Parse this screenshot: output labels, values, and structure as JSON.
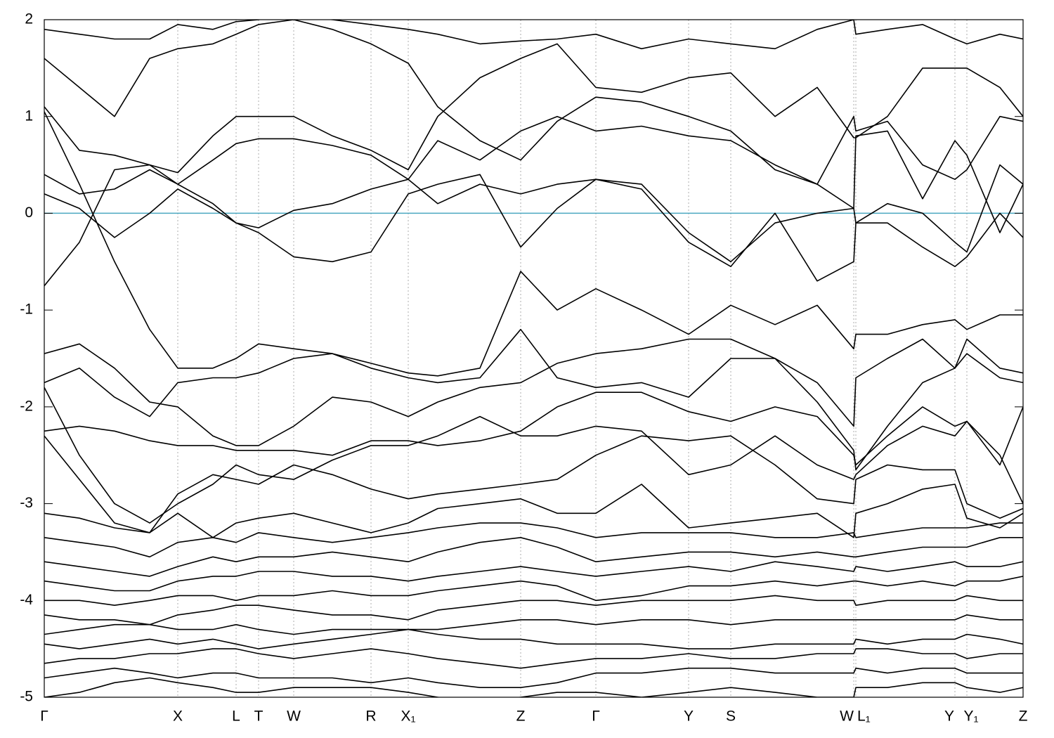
{
  "chart_data": {
    "type": "line",
    "x": [
      0,
      50,
      100,
      150,
      190,
      240,
      273,
      305,
      355,
      410,
      465,
      518,
      560,
      620,
      678,
      730,
      785,
      850,
      917,
      977,
      1040,
      1100,
      1152,
      1155,
      1200,
      1250,
      1296,
      1313,
      1360,
      1393
    ],
    "xlim": [
      0,
      1393
    ],
    "xticks": [
      {
        "value": 0,
        "label": "Γ"
      },
      {
        "value": 190,
        "label": "X"
      },
      {
        "value": 273,
        "label": "L"
      },
      {
        "value": 305,
        "label": "T"
      },
      {
        "value": 355,
        "label": "W"
      },
      {
        "value": 465,
        "label": "R"
      },
      {
        "value": 518,
        "label": "X₁"
      },
      {
        "value": 678,
        "label": "Z"
      },
      {
        "value": 785,
        "label": "Γ"
      },
      {
        "value": 917,
        "label": "Y"
      },
      {
        "value": 977,
        "label": "S"
      },
      {
        "value": 1152,
        "label": "W"
      },
      {
        "value": 1155,
        "label": "L₁"
      },
      {
        "value": 1296,
        "label": "Y"
      },
      {
        "value": 1313,
        "label": "Y₁"
      },
      {
        "value": 1393,
        "label": "Z"
      }
    ],
    "ylim": [
      -5,
      2
    ],
    "yticks": [
      -5,
      -4,
      -3,
      -2,
      -1,
      0,
      1,
      2
    ],
    "grid": true,
    "color": "#000000",
    "reference_line": 0,
    "reference_color": "#4aa8c0",
    "series": [
      {
        "values": [
          1.05,
          0.3,
          -0.5,
          -1.2,
          -1.6,
          -1.6,
          -1.5,
          -1.35,
          -1.4,
          -1.45,
          -1.55,
          -1.65,
          -1.68,
          -1.6,
          -0.6,
          -1.0,
          -0.78,
          -1.0,
          -1.25,
          -0.95,
          -1.15,
          -0.95,
          -1.4,
          -1.25,
          -1.25,
          -1.15,
          -1.1,
          -1.2,
          -1.05,
          -1.05
        ]
      },
      {
        "values": [
          0.2,
          0.05,
          -0.25,
          0.0,
          0.25,
          0.05,
          -0.1,
          -0.2,
          -0.45,
          -0.5,
          -0.4,
          0.2,
          0.3,
          0.4,
          -0.35,
          0.05,
          0.35,
          0.25,
          -0.3,
          -0.55,
          0.0,
          -0.7,
          -0.5,
          -0.1,
          -0.1,
          -0.35,
          -0.55,
          -0.45,
          0.0,
          -0.25
        ]
      },
      {
        "values": [
          0.4,
          0.2,
          0.25,
          0.45,
          0.3,
          0.1,
          -0.1,
          -0.15,
          0.03,
          0.1,
          0.25,
          0.35,
          0.1,
          0.3,
          0.2,
          0.3,
          0.35,
          0.3,
          -0.2,
          -0.5,
          -0.1,
          0.0,
          0.05,
          -0.1,
          0.1,
          0.0,
          -0.3,
          -0.4,
          0.5,
          0.3
        ]
      },
      {
        "values": [
          -0.75,
          -0.3,
          0.45,
          0.5,
          0.3,
          0.55,
          0.72,
          0.77,
          0.77,
          0.7,
          0.6,
          0.35,
          0.75,
          0.55,
          0.85,
          1.0,
          0.85,
          0.9,
          0.8,
          0.75,
          0.5,
          0.3,
          0.05,
          0.8,
          0.85,
          0.15,
          0.75,
          0.6,
          -0.2,
          0.3
        ]
      },
      {
        "values": [
          1.1,
          0.65,
          0.6,
          0.5,
          0.42,
          0.8,
          1.0,
          1.0,
          1.0,
          0.8,
          0.65,
          0.45,
          1.0,
          1.4,
          1.6,
          1.75,
          1.3,
          1.25,
          1.4,
          1.45,
          1.0,
          1.3,
          0.78,
          0.78,
          1.0,
          1.5,
          1.5,
          1.5,
          1.3,
          1.0
        ]
      },
      {
        "values": [
          1.6,
          1.3,
          1.0,
          1.6,
          1.7,
          1.75,
          1.85,
          1.95,
          2.0,
          1.9,
          1.75,
          1.55,
          1.1,
          0.75,
          0.55,
          0.95,
          1.2,
          1.15,
          1.0,
          0.85,
          0.45,
          0.3,
          1.0,
          0.85,
          0.95,
          0.5,
          0.35,
          0.45,
          1.0,
          0.95
        ]
      },
      {
        "values": [
          1.9,
          1.85,
          1.8,
          1.8,
          1.95,
          1.9,
          1.98,
          2.0,
          2.05,
          2.0,
          1.95,
          1.9,
          1.85,
          1.75,
          1.78,
          1.8,
          1.85,
          1.7,
          1.8,
          1.75,
          1.7,
          1.9,
          2.0,
          1.85,
          1.9,
          1.95,
          1.8,
          1.75,
          1.85,
          1.8
        ]
      },
      {
        "values": [
          -1.75,
          -1.6,
          -1.9,
          -2.1,
          -1.75,
          -1.7,
          -1.7,
          -1.65,
          -1.5,
          -1.45,
          -1.6,
          -1.7,
          -1.75,
          -1.7,
          -1.2,
          -1.7,
          -1.8,
          -1.75,
          -1.9,
          -1.5,
          -1.5,
          -1.75,
          -2.2,
          -1.7,
          -1.5,
          -1.3,
          -1.6,
          -1.3,
          -1.6,
          -1.65
        ]
      },
      {
        "values": [
          -1.45,
          -1.35,
          -1.6,
          -1.95,
          -2.0,
          -2.3,
          -2.4,
          -2.4,
          -2.2,
          -1.9,
          -1.95,
          -2.1,
          -1.95,
          -1.8,
          -1.75,
          -1.55,
          -1.45,
          -1.4,
          -1.3,
          -1.3,
          -1.5,
          -1.95,
          -2.45,
          -2.65,
          -2.2,
          -1.75,
          -1.6,
          -1.45,
          -1.7,
          -1.75
        ]
      },
      {
        "values": [
          -2.25,
          -2.2,
          -2.25,
          -2.35,
          -2.4,
          -2.4,
          -2.45,
          -2.45,
          -2.45,
          -2.5,
          -2.35,
          -2.35,
          -2.4,
          -2.35,
          -2.25,
          -2.0,
          -1.85,
          -1.85,
          -2.05,
          -2.15,
          -2.0,
          -2.1,
          -2.5,
          -2.6,
          -2.3,
          -2.0,
          -2.2,
          -2.15,
          -2.6,
          -2.0
        ]
      },
      {
        "values": [
          -1.8,
          -2.5,
          -3.0,
          -3.2,
          -3.0,
          -2.8,
          -2.6,
          -2.7,
          -2.75,
          -2.55,
          -2.4,
          -2.4,
          -2.3,
          -2.1,
          -2.3,
          -2.3,
          -2.2,
          -2.25,
          -2.7,
          -2.6,
          -2.3,
          -2.6,
          -2.75,
          -2.7,
          -2.4,
          -2.2,
          -2.3,
          -2.15,
          -2.5,
          -3.0
        ]
      },
      {
        "values": [
          -2.3,
          -2.75,
          -3.2,
          -3.3,
          -2.9,
          -2.7,
          -2.75,
          -2.8,
          -2.6,
          -2.7,
          -2.85,
          -2.95,
          -2.9,
          -2.85,
          -2.8,
          -2.75,
          -2.5,
          -2.3,
          -2.35,
          -2.3,
          -2.6,
          -2.95,
          -3.0,
          -2.75,
          -2.6,
          -2.65,
          -2.65,
          -3.0,
          -3.15,
          -3.05
        ]
      },
      {
        "values": [
          -3.1,
          -3.15,
          -3.25,
          -3.3,
          -3.1,
          -3.35,
          -3.2,
          -3.15,
          -3.1,
          -3.2,
          -3.3,
          -3.2,
          -3.05,
          -3.0,
          -2.95,
          -3.1,
          -3.1,
          -2.8,
          -3.25,
          -3.2,
          -3.15,
          -3.1,
          -3.35,
          -3.1,
          -3.0,
          -2.85,
          -2.8,
          -3.15,
          -3.25,
          -3.1
        ]
      },
      {
        "values": [
          -3.35,
          -3.4,
          -3.45,
          -3.55,
          -3.4,
          -3.35,
          -3.4,
          -3.3,
          -3.35,
          -3.4,
          -3.35,
          -3.3,
          -3.25,
          -3.2,
          -3.2,
          -3.25,
          -3.35,
          -3.3,
          -3.3,
          -3.3,
          -3.35,
          -3.35,
          -3.3,
          -3.35,
          -3.3,
          -3.25,
          -3.25,
          -3.25,
          -3.2,
          -3.2
        ]
      },
      {
        "values": [
          -3.6,
          -3.65,
          -3.7,
          -3.75,
          -3.65,
          -3.55,
          -3.6,
          -3.55,
          -3.55,
          -3.5,
          -3.55,
          -3.6,
          -3.5,
          -3.4,
          -3.35,
          -3.45,
          -3.6,
          -3.55,
          -3.5,
          -3.5,
          -3.55,
          -3.5,
          -3.55,
          -3.55,
          -3.5,
          -3.45,
          -3.45,
          -3.45,
          -3.35,
          -3.35
        ]
      },
      {
        "values": [
          -3.8,
          -3.85,
          -3.9,
          -3.9,
          -3.8,
          -3.75,
          -3.75,
          -3.7,
          -3.7,
          -3.75,
          -3.75,
          -3.8,
          -3.75,
          -3.7,
          -3.65,
          -3.7,
          -3.75,
          -3.7,
          -3.65,
          -3.7,
          -3.6,
          -3.65,
          -3.7,
          -3.65,
          -3.7,
          -3.65,
          -3.6,
          -3.65,
          -3.65,
          -3.6
        ]
      },
      {
        "values": [
          -4.0,
          -4.0,
          -4.05,
          -4.0,
          -3.95,
          -3.95,
          -4.0,
          -3.95,
          -3.95,
          -3.9,
          -3.95,
          -3.95,
          -3.9,
          -3.85,
          -3.8,
          -3.85,
          -4.0,
          -3.95,
          -3.85,
          -3.85,
          -3.8,
          -3.85,
          -3.8,
          -3.8,
          -3.85,
          -3.8,
          -3.85,
          -3.8,
          -3.8,
          -3.75
        ]
      },
      {
        "values": [
          -4.15,
          -4.2,
          -4.2,
          -4.25,
          -4.15,
          -4.1,
          -4.05,
          -4.05,
          -4.1,
          -4.15,
          -4.15,
          -4.2,
          -4.1,
          -4.05,
          -4.0,
          -4.0,
          -4.05,
          -4.0,
          -4.0,
          -4.0,
          -3.95,
          -4.0,
          -4.0,
          -4.05,
          -4.0,
          -4.0,
          -4.0,
          -3.95,
          -4.0,
          -4.0
        ]
      },
      {
        "values": [
          -4.35,
          -4.3,
          -4.25,
          -4.25,
          -4.3,
          -4.3,
          -4.25,
          -4.3,
          -4.35,
          -4.3,
          -4.3,
          -4.3,
          -4.3,
          -4.25,
          -4.2,
          -4.2,
          -4.25,
          -4.2,
          -4.2,
          -4.25,
          -4.2,
          -4.2,
          -4.2,
          -4.2,
          -4.2,
          -4.2,
          -4.2,
          -4.15,
          -4.2,
          -4.2
        ]
      },
      {
        "values": [
          -4.45,
          -4.5,
          -4.45,
          -4.4,
          -4.45,
          -4.4,
          -4.45,
          -4.5,
          -4.45,
          -4.4,
          -4.35,
          -4.3,
          -4.35,
          -4.4,
          -4.4,
          -4.45,
          -4.45,
          -4.45,
          -4.5,
          -4.5,
          -4.45,
          -4.45,
          -4.45,
          -4.4,
          -4.45,
          -4.4,
          -4.4,
          -4.35,
          -4.4,
          -4.45
        ]
      },
      {
        "values": [
          -4.65,
          -4.6,
          -4.6,
          -4.55,
          -4.55,
          -4.5,
          -4.5,
          -4.55,
          -4.6,
          -4.55,
          -4.5,
          -4.55,
          -4.6,
          -4.65,
          -4.7,
          -4.65,
          -4.6,
          -4.6,
          -4.55,
          -4.6,
          -4.6,
          -4.55,
          -4.55,
          -4.5,
          -4.5,
          -4.55,
          -4.55,
          -4.6,
          -4.55,
          -4.55
        ]
      },
      {
        "values": [
          -4.8,
          -4.75,
          -4.7,
          -4.75,
          -4.8,
          -4.75,
          -4.75,
          -4.8,
          -4.8,
          -4.8,
          -4.85,
          -4.8,
          -4.85,
          -4.9,
          -4.9,
          -4.85,
          -4.75,
          -4.75,
          -4.7,
          -4.7,
          -4.75,
          -4.75,
          -4.75,
          -4.7,
          -4.75,
          -4.7,
          -4.7,
          -4.75,
          -4.75,
          -4.75
        ]
      },
      {
        "values": [
          -5.0,
          -4.95,
          -4.85,
          -4.8,
          -4.85,
          -4.9,
          -4.95,
          -4.95,
          -4.9,
          -4.9,
          -4.9,
          -4.95,
          -5.0,
          -5.05,
          -5.0,
          -4.95,
          -4.95,
          -5.0,
          -4.95,
          -4.9,
          -4.95,
          -5.0,
          -5.0,
          -4.9,
          -4.9,
          -4.85,
          -4.85,
          -4.9,
          -4.95,
          -4.9
        ]
      }
    ]
  }
}
